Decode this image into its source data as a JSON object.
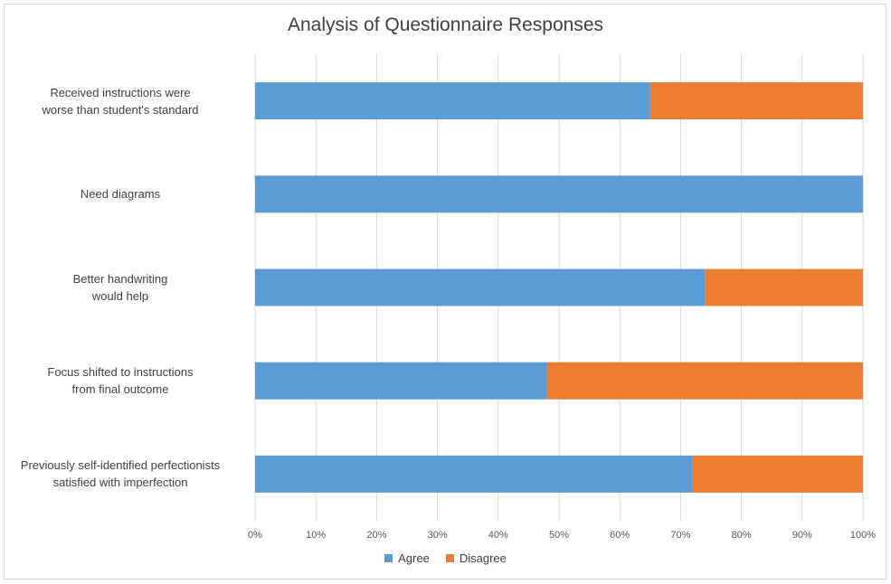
{
  "chart_data": {
    "type": "bar",
    "orientation": "horizontal",
    "stacked": "percent",
    "title": "Analysis of Questionnaire Responses",
    "categories": [
      [
        "Received instructions were",
        "worse than student's standard"
      ],
      [
        "Need diagrams"
      ],
      [
        "Better handwriting",
        "would help"
      ],
      [
        "Focus shifted to instructions",
        "from final outcome"
      ],
      [
        "Previously self-identified perfectionists",
        "satisfied with imperfection"
      ]
    ],
    "series": [
      {
        "name": "Agree",
        "color": "#5b9bd5",
        "values": [
          65,
          100,
          74,
          48,
          72
        ]
      },
      {
        "name": "Disagree",
        "color": "#ed7d31",
        "values": [
          35,
          0,
          26,
          52,
          28
        ]
      }
    ],
    "x_ticks": [
      "0%",
      "10%",
      "20%",
      "30%",
      "40%",
      "50%",
      "60%",
      "70%",
      "80%",
      "90%",
      "100%"
    ],
    "xlim": [
      0,
      100
    ],
    "grid": "vertical",
    "legend_position": "bottom"
  }
}
